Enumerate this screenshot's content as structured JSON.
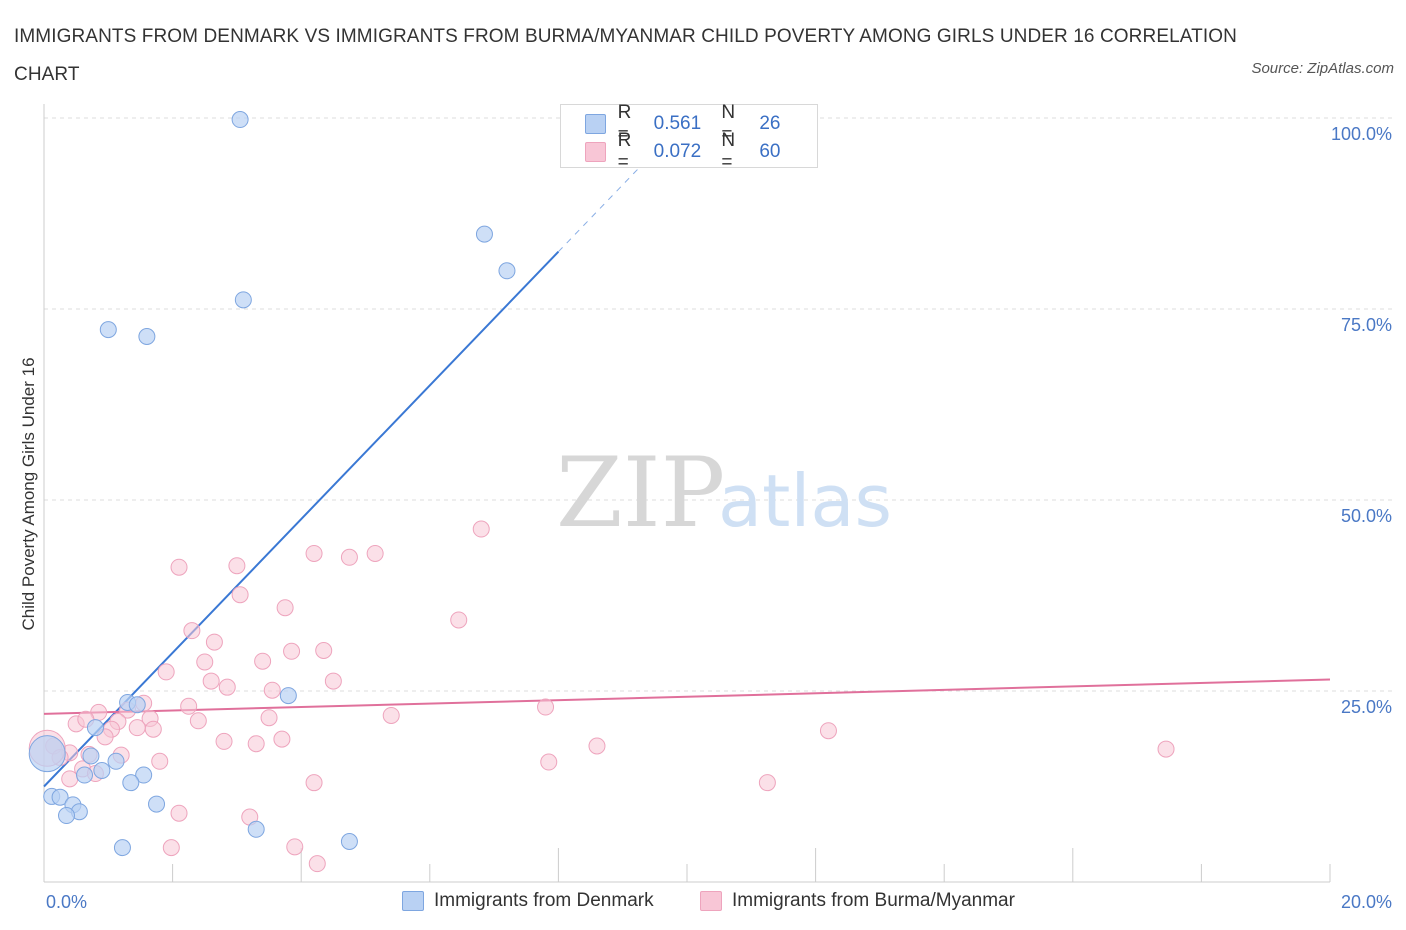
{
  "title": "IMMIGRANTS FROM DENMARK VS IMMIGRANTS FROM BURMA/MYANMAR CHILD POVERTY AMONG GIRLS UNDER 16 CORRELATION CHART",
  "source": "Source: ZipAtlas.com",
  "watermark": {
    "zip": "ZIP",
    "atlas": "atlas"
  },
  "legend": {
    "r_label": "R =",
    "n_label": "N =",
    "series": [
      {
        "name": "Immigrants from Denmark",
        "r": "0.561",
        "n": "26"
      },
      {
        "name": "Immigrants from Burma/Myanmar",
        "r": "0.072",
        "n": "60"
      }
    ]
  },
  "colors": {
    "denmark_fill": "#b9d1f3",
    "denmark_stroke": "#7ea6e0",
    "denmark_line": "#3a78d4",
    "burma_fill": "#f8c6d6",
    "burma_stroke": "#eea4bd",
    "burma_line": "#e0709b",
    "tick": "#4a78c5",
    "grid": "#dddddd"
  },
  "chart_data": {
    "type": "scatter",
    "title": "IMMIGRANTS FROM DENMARK VS IMMIGRANTS FROM BURMA/MYANMAR CHILD POVERTY AMONG GIRLS UNDER 16 CORRELATION CHART",
    "xlabel": "",
    "ylabel": "Child Poverty Among Girls Under 16",
    "xlim": [
      0,
      20
    ],
    "ylim": [
      0,
      100
    ],
    "x_tick_labels": [
      "0.0%",
      "20.0%"
    ],
    "y_ticks": [
      25,
      50,
      75,
      100
    ],
    "y_tick_labels": [
      "25.0%",
      "50.0%",
      "75.0%",
      "100.0%"
    ],
    "grid": true,
    "legend_position": "top-center",
    "series": [
      {
        "name": "Immigrants from Denmark",
        "r": 0.561,
        "n": 26,
        "points": [
          [
            3.05,
            99.8
          ],
          [
            6.85,
            84.8
          ],
          [
            7.2,
            80.0
          ],
          [
            3.1,
            76.2
          ],
          [
            1.0,
            72.3
          ],
          [
            1.6,
            71.4
          ],
          [
            3.8,
            24.4
          ],
          [
            1.3,
            23.5
          ],
          [
            1.45,
            23.2
          ],
          [
            0.8,
            20.2
          ],
          [
            0.73,
            16.5
          ],
          [
            1.12,
            15.8
          ],
          [
            0.9,
            14.6
          ],
          [
            0.63,
            14.0
          ],
          [
            1.55,
            14.0
          ],
          [
            1.35,
            13.0
          ],
          [
            0.12,
            11.2
          ],
          [
            0.25,
            11.1
          ],
          [
            0.45,
            10.1
          ],
          [
            1.75,
            10.2
          ],
          [
            0.55,
            9.2
          ],
          [
            0.35,
            8.7
          ],
          [
            3.3,
            6.9
          ],
          [
            4.75,
            5.3
          ],
          [
            1.22,
            4.5
          ],
          [
            0.05,
            16.8
          ]
        ],
        "trend": {
          "x0": 0.0,
          "y0": 12.5,
          "x1": 8.0,
          "y1": 82.5,
          "dashed_to_x": 9.6,
          "dashed_to_y": 96.5
        }
      },
      {
        "name": "Immigrants from Burma/Myanmar",
        "r": 0.072,
        "n": 60,
        "points": [
          [
            6.8,
            46.2
          ],
          [
            2.1,
            41.2
          ],
          [
            3.0,
            41.4
          ],
          [
            4.2,
            43.0
          ],
          [
            4.75,
            42.5
          ],
          [
            5.15,
            43.0
          ],
          [
            3.05,
            37.6
          ],
          [
            3.75,
            35.9
          ],
          [
            6.45,
            34.3
          ],
          [
            2.3,
            32.9
          ],
          [
            2.65,
            31.4
          ],
          [
            3.85,
            30.2
          ],
          [
            4.35,
            30.3
          ],
          [
            2.5,
            28.8
          ],
          [
            3.4,
            28.9
          ],
          [
            1.9,
            27.5
          ],
          [
            2.6,
            26.3
          ],
          [
            4.5,
            26.3
          ],
          [
            2.85,
            25.5
          ],
          [
            3.55,
            25.1
          ],
          [
            2.25,
            23.0
          ],
          [
            1.55,
            23.4
          ],
          [
            1.3,
            22.5
          ],
          [
            0.85,
            22.2
          ],
          [
            7.8,
            22.9
          ],
          [
            5.4,
            21.8
          ],
          [
            1.65,
            21.4
          ],
          [
            2.4,
            21.1
          ],
          [
            3.5,
            21.5
          ],
          [
            1.15,
            21.0
          ],
          [
            0.5,
            20.7
          ],
          [
            0.65,
            21.3
          ],
          [
            1.45,
            20.2
          ],
          [
            1.7,
            20.0
          ],
          [
            1.05,
            20.0
          ],
          [
            0.95,
            19.0
          ],
          [
            12.2,
            19.8
          ],
          [
            2.8,
            18.4
          ],
          [
            3.3,
            18.1
          ],
          [
            3.7,
            18.7
          ],
          [
            8.6,
            17.8
          ],
          [
            17.45,
            17.4
          ],
          [
            0.15,
            17.8
          ],
          [
            0.4,
            16.9
          ],
          [
            0.7,
            16.7
          ],
          [
            1.2,
            16.6
          ],
          [
            0.25,
            16.3
          ],
          [
            1.8,
            15.8
          ],
          [
            7.85,
            15.7
          ],
          [
            0.6,
            14.8
          ],
          [
            0.8,
            14.2
          ],
          [
            0.4,
            13.5
          ],
          [
            4.2,
            13.0
          ],
          [
            11.25,
            13.0
          ],
          [
            2.1,
            9.0
          ],
          [
            3.2,
            8.5
          ],
          [
            1.98,
            4.5
          ],
          [
            3.9,
            4.6
          ],
          [
            4.25,
            2.4
          ],
          [
            0.05,
            17.5
          ]
        ],
        "trend": {
          "x0": 0.0,
          "y0": 22.0,
          "x1": 20.0,
          "y1": 26.5
        }
      }
    ]
  }
}
